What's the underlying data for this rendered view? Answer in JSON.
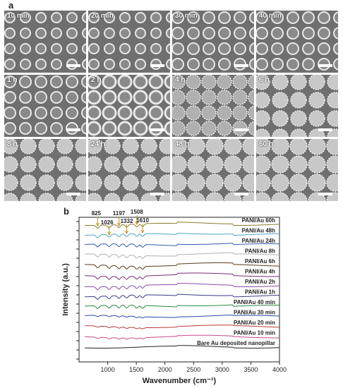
{
  "panel_a_label": "a",
  "panel_b_label": "b",
  "sem_tiles": [
    {
      "label": "10 min",
      "stage": 0
    },
    {
      "label": "20 min",
      "stage": 0
    },
    {
      "label": "30 min",
      "stage": 1
    },
    {
      "label": "40 min",
      "stage": 1
    },
    {
      "label": "1 h",
      "stage": 1
    },
    {
      "label": "2 h",
      "stage": 2
    },
    {
      "label": "4 h",
      "stage": 3
    },
    {
      "label": "6 h",
      "stage": 4
    },
    {
      "label": "8 h",
      "stage": 4
    },
    {
      "label": "24 h",
      "stage": 4
    },
    {
      "label": "48 h",
      "stage": 5
    },
    {
      "label": "60 h",
      "stage": 5
    }
  ],
  "chart_data": {
    "type": "line",
    "xlabel": "Wavenumber (cm⁻¹)",
    "ylabel": "Intensity (a.u.)",
    "xlim": [
      500,
      4000
    ],
    "xticks": [
      1000,
      1500,
      2000,
      2500,
      3000,
      3500,
      4000
    ],
    "peaks": [
      {
        "label": "825",
        "x": 825
      },
      {
        "label": "1026",
        "x": 1026
      },
      {
        "label": "1197",
        "x": 1197
      },
      {
        "label": "1332",
        "x": 1332
      },
      {
        "label": "1508",
        "x": 1508
      },
      {
        "label": "1610",
        "x": 1610
      }
    ],
    "series": [
      {
        "name": "PANI/Au 60h",
        "color": "#8a7a2a"
      },
      {
        "name": "PANI/Au 48h",
        "color": "#4aa6c8"
      },
      {
        "name": "PANI/Au 24h",
        "color": "#2f5fa8"
      },
      {
        "name": "PANI/Au 8h",
        "color": "#b0b0b0"
      },
      {
        "name": "PANI/Au 6h",
        "color": "#5a3a1a"
      },
      {
        "name": "PANI/Au 4h",
        "color": "#7a2a7a"
      },
      {
        "name": "PANI/Au 2h",
        "color": "#8a4aa8"
      },
      {
        "name": "PANI/Au 1h",
        "color": "#3a3a8a"
      },
      {
        "name": "PANI/Au 40 min",
        "color": "#2a8a3a"
      },
      {
        "name": "PANI/Au 30 min",
        "color": "#2a4aa8"
      },
      {
        "name": "PANI/Au 20 min",
        "color": "#b83a3a"
      },
      {
        "name": "PANI/Au 10 min",
        "color": "#c84a8a"
      },
      {
        "name": "Bare Au deposited nanopillar",
        "color": "#222222"
      }
    ]
  }
}
